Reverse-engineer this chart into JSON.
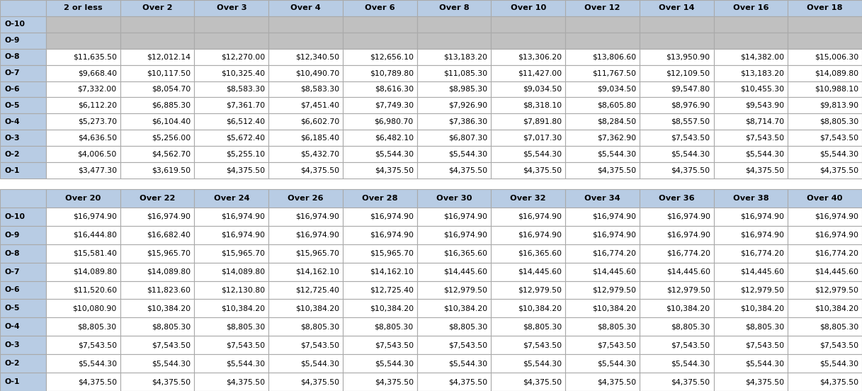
{
  "table1_headers": [
    "",
    "2 or less",
    "Over 2",
    "Over 3",
    "Over 4",
    "Over 6",
    "Over 8",
    "Over 10",
    "Over 12",
    "Over 14",
    "Over 16",
    "Over 18"
  ],
  "table1_rows": [
    [
      "O-10",
      "",
      "",
      "",
      "",
      "",
      "",
      "",
      "",
      "",
      "",
      ""
    ],
    [
      "O-9",
      "",
      "",
      "",
      "",
      "",
      "",
      "",
      "",
      "",
      "",
      ""
    ],
    [
      "O-8",
      "$11,635.50",
      "$12,012.14",
      "$12,270.00",
      "$12,340.50",
      "$12,656.10",
      "$13,183.20",
      "$13,306.20",
      "$13,806.60",
      "$13,950.90",
      "$14,382.00",
      "$15,006.30"
    ],
    [
      "O-7",
      "$9,668.40",
      "$10,117.50",
      "$10,325.40",
      "$10,490.70",
      "$10,789.80",
      "$11,085.30",
      "$11,427.00",
      "$11,767.50",
      "$12,109.50",
      "$13,183.20",
      "$14,089.80"
    ],
    [
      "O-6",
      "$7,332.00",
      "$8,054.70",
      "$8,583.30",
      "$8,583.30",
      "$8,616.30",
      "$8,985.30",
      "$9,034.50",
      "$9,034.50",
      "$9,547.80",
      "$10,455.30",
      "$10,988.10"
    ],
    [
      "O-5",
      "$6,112.20",
      "$6,885.30",
      "$7,361.70",
      "$7,451.40",
      "$7,749.30",
      "$7,926.90",
      "$8,318.10",
      "$8,605.80",
      "$8,976.90",
      "$9,543.90",
      "$9,813.90"
    ],
    [
      "O-4",
      "$5,273.70",
      "$6,104.40",
      "$6,512.40",
      "$6,602.70",
      "$6,980.70",
      "$7,386.30",
      "$7,891.80",
      "$8,284.50",
      "$8,557.50",
      "$8,714.70",
      "$8,805.30"
    ],
    [
      "O-3",
      "$4,636.50",
      "$5,256.00",
      "$5,672.40",
      "$6,185.40",
      "$6,482.10",
      "$6,807.30",
      "$7,017.30",
      "$7,362.90",
      "$7,543.50",
      "$7,543.50",
      "$7,543.50"
    ],
    [
      "O-2",
      "$4,006.50",
      "$4,562.70",
      "$5,255.10",
      "$5,432.70",
      "$5,544.30",
      "$5,544.30",
      "$5,544.30",
      "$5,544.30",
      "$5,544.30",
      "$5,544.30",
      "$5,544.30"
    ],
    [
      "O-1",
      "$3,477.30",
      "$3,619.50",
      "$4,375.50",
      "$4,375.50",
      "$4,375.50",
      "$4,375.50",
      "$4,375.50",
      "$4,375.50",
      "$4,375.50",
      "$4,375.50",
      "$4,375.50"
    ]
  ],
  "table1_empty_rows": [
    0,
    1
  ],
  "table2_headers": [
    "",
    "Over 20",
    "Over 22",
    "Over 24",
    "Over 26",
    "Over 28",
    "Over 30",
    "Over 32",
    "Over 34",
    "Over 36",
    "Over 38",
    "Over 40"
  ],
  "table2_rows": [
    [
      "O-10",
      "$16,974.90",
      "$16,974.90",
      "$16,974.90",
      "$16,974.90",
      "$16,974.90",
      "$16,974.90",
      "$16,974.90",
      "$16,974.90",
      "$16,974.90",
      "$16,974.90",
      "$16,974.90"
    ],
    [
      "O-9",
      "$16,444.80",
      "$16,682.40",
      "$16,974.90",
      "$16,974.90",
      "$16,974.90",
      "$16,974.90",
      "$16,974.90",
      "$16,974.90",
      "$16,974.90",
      "$16,974.90",
      "$16,974.90"
    ],
    [
      "O-8",
      "$15,581.40",
      "$15,965.70",
      "$15,965.70",
      "$15,965.70",
      "$15,965.70",
      "$16,365.60",
      "$16,365.60",
      "$16,774.20",
      "$16,774.20",
      "$16,774.20",
      "$16,774.20"
    ],
    [
      "O-7",
      "$14,089.80",
      "$14,089.80",
      "$14,089.80",
      "$14,162.10",
      "$14,162.10",
      "$14,445.60",
      "$14,445.60",
      "$14,445.60",
      "$14,445.60",
      "$14,445.60",
      "$14,445.60"
    ],
    [
      "O-6",
      "$11,520.60",
      "$11,823.60",
      "$12,130.80",
      "$12,725.40",
      "$12,725.40",
      "$12,979.50",
      "$12,979.50",
      "$12,979.50",
      "$12,979.50",
      "$12,979.50",
      "$12,979.50"
    ],
    [
      "O-5",
      "$10,080.90",
      "$10,384.20",
      "$10,384.20",
      "$10,384.20",
      "$10,384.20",
      "$10,384.20",
      "$10,384.20",
      "$10,384.20",
      "$10,384.20",
      "$10,384.20",
      "$10,384.20"
    ],
    [
      "O-4",
      "$8,805.30",
      "$8,805.30",
      "$8,805.30",
      "$8,805.30",
      "$8,805.30",
      "$8,805.30",
      "$8,805.30",
      "$8,805.30",
      "$8,805.30",
      "$8,805.30",
      "$8,805.30"
    ],
    [
      "O-3",
      "$7,543.50",
      "$7,543.50",
      "$7,543.50",
      "$7,543.50",
      "$7,543.50",
      "$7,543.50",
      "$7,543.50",
      "$7,543.50",
      "$7,543.50",
      "$7,543.50",
      "$7,543.50"
    ],
    [
      "O-2",
      "$5,544.30",
      "$5,544.30",
      "$5,544.30",
      "$5,544.30",
      "$5,544.30",
      "$5,544.30",
      "$5,544.30",
      "$5,544.30",
      "$5,544.30",
      "$5,544.30",
      "$5,544.30"
    ],
    [
      "O-1",
      "$4,375.50",
      "$4,375.50",
      "$4,375.50",
      "$4,375.50",
      "$4,375.50",
      "$4,375.50",
      "$4,375.50",
      "$4,375.50",
      "$4,375.50",
      "$4,375.50",
      "$4,375.50"
    ]
  ],
  "table2_empty_rows": [],
  "header_bg": "#b8cce4",
  "header_fg": "#000000",
  "row_label_bg": "#b8cce4",
  "row_label_fg": "#000000",
  "empty_cell_bg": "#c0c0c0",
  "data_cell_bg": "#ffffff",
  "grid_color": "#aaaaaa",
  "cell_font_size": 7.8,
  "header_font_size": 8.2,
  "fig_width": 12.17,
  "fig_height": 5.52,
  "dpi": 100
}
